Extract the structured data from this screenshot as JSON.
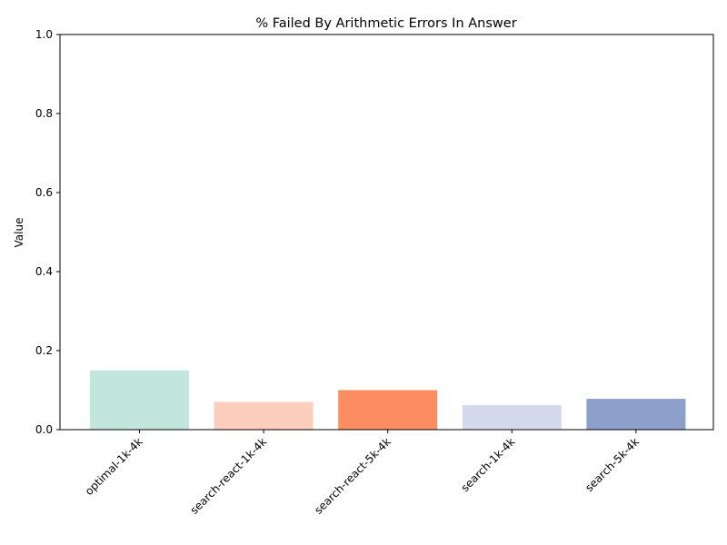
{
  "chart_data": {
    "type": "bar",
    "title": "% Failed By Arithmetic Errors In Answer",
    "xlabel": "",
    "ylabel": "Value",
    "categories": [
      "optimal-1k-4k",
      "search-react-1k-4k",
      "search-react-5k-4k",
      "search-1k-4k",
      "search-5k-4k"
    ],
    "values": [
      0.15,
      0.07,
      0.1,
      0.062,
      0.078
    ],
    "colors": [
      "#c3e6dc",
      "#fdcdbd",
      "#fc8d62",
      "#d4d9eb",
      "#8da0cb"
    ],
    "ylim": [
      0,
      1.0
    ],
    "yticks": [
      0.0,
      0.2,
      0.4,
      0.6,
      0.8,
      1.0
    ],
    "ytick_labels": [
      "0.0",
      "0.2",
      "0.4",
      "0.6",
      "0.8",
      "1.0"
    ],
    "grid": false,
    "legend": false
  }
}
